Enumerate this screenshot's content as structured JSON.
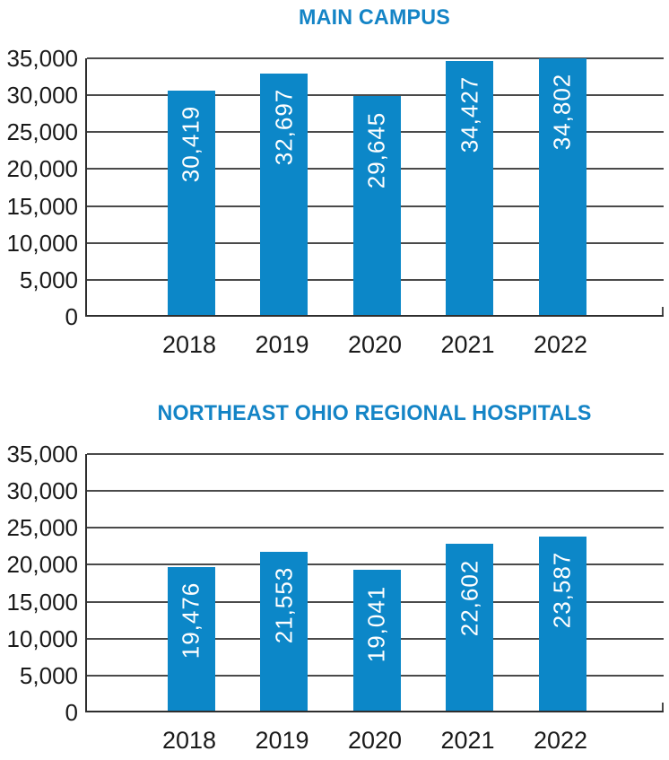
{
  "colors": {
    "background": "#ffffff",
    "title": "#1484c6",
    "axis": "#2e2e2e",
    "grid": "#4a4a4a",
    "text": "#1a1a1a"
  },
  "chart_data": [
    {
      "type": "bar",
      "title": "MAIN CAMPUS",
      "categories": [
        "2018",
        "2019",
        "2020",
        "2021",
        "2022"
      ],
      "values": [
        30419,
        32697,
        29645,
        34427,
        34802
      ],
      "value_labels": [
        "30,419",
        "32,697",
        "29,645",
        "34,427",
        "34,802"
      ],
      "xlabel": "",
      "ylabel": "",
      "ylim": [
        0,
        35000
      ],
      "ytick_step": 5000,
      "ytick_labels": [
        "0",
        "5,000",
        "10,000",
        "15,000",
        "20,000",
        "25,000",
        "30,000",
        "35,000"
      ],
      "grid": true,
      "legend": false,
      "bar_color": "#0c87c8",
      "value_label_color": "#ffffff",
      "value_label_orientation": "vertical"
    },
    {
      "type": "bar",
      "title": "NORTHEAST OHIO REGIONAL HOSPITALS",
      "categories": [
        "2018",
        "2019",
        "2020",
        "2021",
        "2022"
      ],
      "values": [
        19476,
        21553,
        19041,
        22602,
        23587
      ],
      "value_labels": [
        "19,476",
        "21,553",
        "19,041",
        "22,602",
        "23,587"
      ],
      "xlabel": "",
      "ylabel": "",
      "ylim": [
        0,
        35000
      ],
      "ytick_step": 5000,
      "ytick_labels": [
        "0",
        "5,000",
        "10,000",
        "15,000",
        "20,000",
        "25,000",
        "30,000",
        "35,000"
      ],
      "grid": true,
      "legend": false,
      "bar_color": "#0c87c8",
      "value_label_color": "#ffffff",
      "value_label_orientation": "vertical"
    }
  ]
}
